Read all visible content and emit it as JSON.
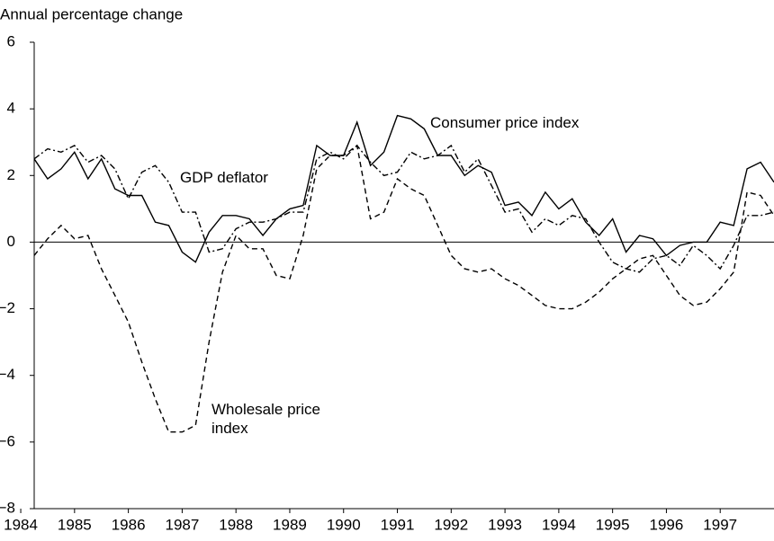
{
  "chart_data": {
    "type": "line",
    "y_axis_label": "Annual percentage change",
    "x": [
      1984.25,
      1984.5,
      1984.75,
      1985,
      1985.25,
      1985.5,
      1985.75,
      1986,
      1986.25,
      1986.5,
      1986.75,
      1987,
      1987.25,
      1987.5,
      1987.75,
      1988,
      1988.25,
      1988.5,
      1988.75,
      1989,
      1989.25,
      1989.5,
      1989.75,
      1990,
      1990.25,
      1990.5,
      1990.75,
      1991,
      1991.25,
      1991.5,
      1991.75,
      1992,
      1992.25,
      1992.5,
      1992.75,
      1993,
      1993.25,
      1993.5,
      1993.75,
      1994,
      1994.25,
      1994.5,
      1994.75,
      1995,
      1995.25,
      1995.5,
      1995.75,
      1996,
      1996.25,
      1996.5,
      1996.75,
      1997,
      1997.25,
      1997.5,
      1997.75,
      1998
    ],
    "series": [
      {
        "name": "Consumer price index",
        "color": "#000000",
        "dash": "solid",
        "values": [
          2.5,
          1.9,
          2.2,
          2.7,
          1.9,
          2.5,
          1.6,
          1.4,
          1.4,
          0.6,
          0.5,
          -0.3,
          -0.6,
          0.3,
          0.8,
          0.8,
          0.7,
          0.2,
          0.7,
          1.0,
          1.1,
          2.9,
          2.6,
          2.6,
          3.6,
          2.3,
          2.7,
          3.8,
          3.7,
          3.4,
          2.6,
          2.6,
          2.0,
          2.3,
          2.1,
          1.1,
          1.2,
          0.8,
          1.5,
          1.0,
          1.3,
          0.6,
          0.2,
          0.7,
          -0.3,
          0.2,
          0.1,
          -0.4,
          -0.1,
          0.0,
          0.0,
          0.6,
          0.5,
          2.2,
          2.4,
          1.8
        ]
      },
      {
        "name": "GDP deflator",
        "color": "#000000",
        "dash": "dashdot",
        "values": [
          2.5,
          2.8,
          2.7,
          2.9,
          2.4,
          2.6,
          2.2,
          1.3,
          2.1,
          2.3,
          1.8,
          0.9,
          0.9,
          -0.3,
          -0.2,
          0.4,
          0.6,
          0.6,
          0.7,
          0.9,
          0.9,
          2.5,
          2.7,
          2.5,
          2.9,
          2.4,
          2.0,
          2.1,
          2.7,
          2.5,
          2.6,
          2.9,
          2.1,
          2.5,
          1.7,
          0.9,
          1.0,
          0.3,
          0.7,
          0.5,
          0.8,
          0.7,
          0.0,
          -0.6,
          -0.8,
          -0.9,
          -0.5,
          -0.4,
          -0.7,
          -0.1,
          -0.4,
          -0.8,
          -0.1,
          0.8,
          0.8,
          0.9
        ]
      },
      {
        "name": "Wholesale price index",
        "color": "#000000",
        "dash": "dashed",
        "values": [
          -0.4,
          0.1,
          0.5,
          0.1,
          0.2,
          -0.8,
          -1.6,
          -2.4,
          -3.6,
          -4.7,
          -5.7,
          -5.7,
          -5.5,
          -3.0,
          -0.9,
          0.2,
          -0.2,
          -0.2,
          -1.0,
          -1.1,
          0.2,
          2.2,
          2.6,
          2.6,
          2.9,
          0.7,
          0.9,
          1.9,
          1.6,
          1.4,
          0.5,
          -0.4,
          -0.8,
          -0.9,
          -0.8,
          -1.1,
          -1.3,
          -1.6,
          -1.9,
          -2.0,
          -2.0,
          -1.8,
          -1.5,
          -1.1,
          -0.8,
          -0.5,
          -0.4,
          -1.0,
          -1.6,
          -1.9,
          -1.8,
          -1.4,
          -0.9,
          1.5,
          1.4,
          0.8
        ]
      }
    ],
    "xlim": [
      1984.25,
      1998
    ],
    "xticks": [
      1984,
      1985,
      1986,
      1987,
      1988,
      1989,
      1990,
      1991,
      1992,
      1993,
      1994,
      1995,
      1996,
      1997
    ],
    "ylim": [
      -8,
      6
    ],
    "yticks": [
      {
        "value": -8,
        "label": "−8"
      },
      {
        "value": -6,
        "label": "−6"
      },
      {
        "value": -4,
        "label": "−4"
      },
      {
        "value": -2,
        "label": "−2"
      },
      0,
      2,
      4,
      6
    ],
    "zero_line": true
  }
}
